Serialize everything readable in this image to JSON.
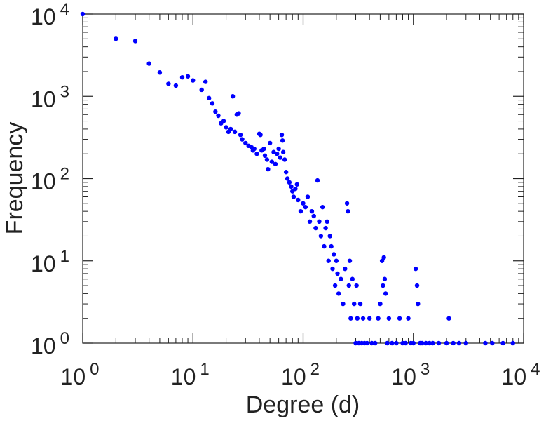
{
  "chart_data": {
    "type": "scatter",
    "title": "",
    "xlabel": "Degree (d)",
    "ylabel": "Frequency",
    "xscale": "log",
    "yscale": "log",
    "xlim": [
      1,
      10000
    ],
    "ylim": [
      1,
      10000
    ],
    "x_ticks": [
      {
        "base": "10",
        "exp": "0",
        "value": 1
      },
      {
        "base": "10",
        "exp": "1",
        "value": 10
      },
      {
        "base": "10",
        "exp": "2",
        "value": 100
      },
      {
        "base": "10",
        "exp": "3",
        "value": 1000
      },
      {
        "base": "10",
        "exp": "4",
        "value": 10000
      }
    ],
    "y_ticks": [
      {
        "base": "10",
        "exp": "0",
        "value": 1
      },
      {
        "base": "10",
        "exp": "1",
        "value": 10
      },
      {
        "base": "10",
        "exp": "2",
        "value": 100
      },
      {
        "base": "10",
        "exp": "3",
        "value": 1000
      },
      {
        "base": "10",
        "exp": "4",
        "value": 10000
      }
    ],
    "grid": false,
    "marker_color": "#0000ff",
    "series": [
      {
        "points": [
          [
            1,
            10000
          ],
          [
            2,
            5000
          ],
          [
            3,
            4700
          ],
          [
            4,
            2500
          ],
          [
            5,
            1950
          ],
          [
            6,
            1420
          ],
          [
            7,
            1350
          ],
          [
            8,
            1700
          ],
          [
            9,
            1750
          ],
          [
            10,
            1560
          ],
          [
            12,
            1200
          ],
          [
            13,
            1500
          ],
          [
            14,
            950
          ],
          [
            15,
            820
          ],
          [
            16,
            650
          ],
          [
            17,
            580
          ],
          [
            18,
            470
          ],
          [
            19,
            500
          ],
          [
            20,
            420
          ],
          [
            21,
            370
          ],
          [
            22,
            400
          ],
          [
            23,
            1000
          ],
          [
            24,
            370
          ],
          [
            25,
            600
          ],
          [
            26,
            620
          ],
          [
            27,
            340
          ],
          [
            28,
            300
          ],
          [
            30,
            270
          ],
          [
            32,
            250
          ],
          [
            34,
            240
          ],
          [
            35,
            220
          ],
          [
            36,
            230
          ],
          [
            38,
            200
          ],
          [
            40,
            350
          ],
          [
            41,
            340
          ],
          [
            42,
            220
          ],
          [
            44,
            230
          ],
          [
            45,
            190
          ],
          [
            47,
            170
          ],
          [
            48,
            130
          ],
          [
            50,
            270
          ],
          [
            52,
            160
          ],
          [
            54,
            210
          ],
          [
            56,
            150
          ],
          [
            58,
            200
          ],
          [
            60,
            230
          ],
          [
            62,
            180
          ],
          [
            64,
            340
          ],
          [
            65,
            290
          ],
          [
            66,
            210
          ],
          [
            68,
            170
          ],
          [
            70,
            120
          ],
          [
            72,
            100
          ],
          [
            75,
            90
          ],
          [
            78,
            80
          ],
          [
            80,
            70
          ],
          [
            82,
            60
          ],
          [
            85,
            75
          ],
          [
            88,
            85
          ],
          [
            90,
            55
          ],
          [
            95,
            40
          ],
          [
            100,
            50
          ],
          [
            105,
            45
          ],
          [
            110,
            60
          ],
          [
            115,
            30
          ],
          [
            120,
            40
          ],
          [
            125,
            35
          ],
          [
            130,
            25
          ],
          [
            135,
            95
          ],
          [
            140,
            30
          ],
          [
            145,
            20
          ],
          [
            150,
            45
          ],
          [
            155,
            15
          ],
          [
            160,
            25
          ],
          [
            165,
            30
          ],
          [
            170,
            10
          ],
          [
            175,
            20
          ],
          [
            180,
            15
          ],
          [
            185,
            8
          ],
          [
            190,
            12
          ],
          [
            195,
            5
          ],
          [
            200,
            10
          ],
          [
            205,
            7
          ],
          [
            210,
            4
          ],
          [
            220,
            6
          ],
          [
            230,
            3
          ],
          [
            240,
            8
          ],
          [
            250,
            50
          ],
          [
            255,
            40
          ],
          [
            260,
            5
          ],
          [
            265,
            10
          ],
          [
            270,
            2
          ],
          [
            280,
            6
          ],
          [
            290,
            3
          ],
          [
            300,
            1
          ],
          [
            305,
            5
          ],
          [
            310,
            2
          ],
          [
            320,
            1
          ],
          [
            330,
            3
          ],
          [
            340,
            1
          ],
          [
            350,
            2
          ],
          [
            360,
            1
          ],
          [
            380,
            1
          ],
          [
            400,
            2
          ],
          [
            420,
            1
          ],
          [
            450,
            1
          ],
          [
            480,
            2
          ],
          [
            500,
            3
          ],
          [
            520,
            10
          ],
          [
            530,
            5
          ],
          [
            540,
            11
          ],
          [
            550,
            6
          ],
          [
            560,
            4
          ],
          [
            580,
            1
          ],
          [
            600,
            2
          ],
          [
            640,
            1
          ],
          [
            700,
            1
          ],
          [
            750,
            2
          ],
          [
            800,
            1
          ],
          [
            850,
            1
          ],
          [
            900,
            2
          ],
          [
            950,
            1
          ],
          [
            1000,
            1
          ],
          [
            1050,
            8
          ],
          [
            1080,
            5
          ],
          [
            1100,
            3
          ],
          [
            1150,
            1
          ],
          [
            1200,
            1
          ],
          [
            1300,
            1
          ],
          [
            1400,
            1
          ],
          [
            1500,
            1
          ],
          [
            1700,
            1
          ],
          [
            2000,
            1
          ],
          [
            2100,
            2
          ],
          [
            2300,
            1
          ],
          [
            2600,
            1
          ],
          [
            3000,
            1
          ],
          [
            4500,
            1
          ],
          [
            5200,
            1
          ],
          [
            6500,
            1
          ],
          [
            8000,
            1
          ]
        ]
      }
    ]
  }
}
